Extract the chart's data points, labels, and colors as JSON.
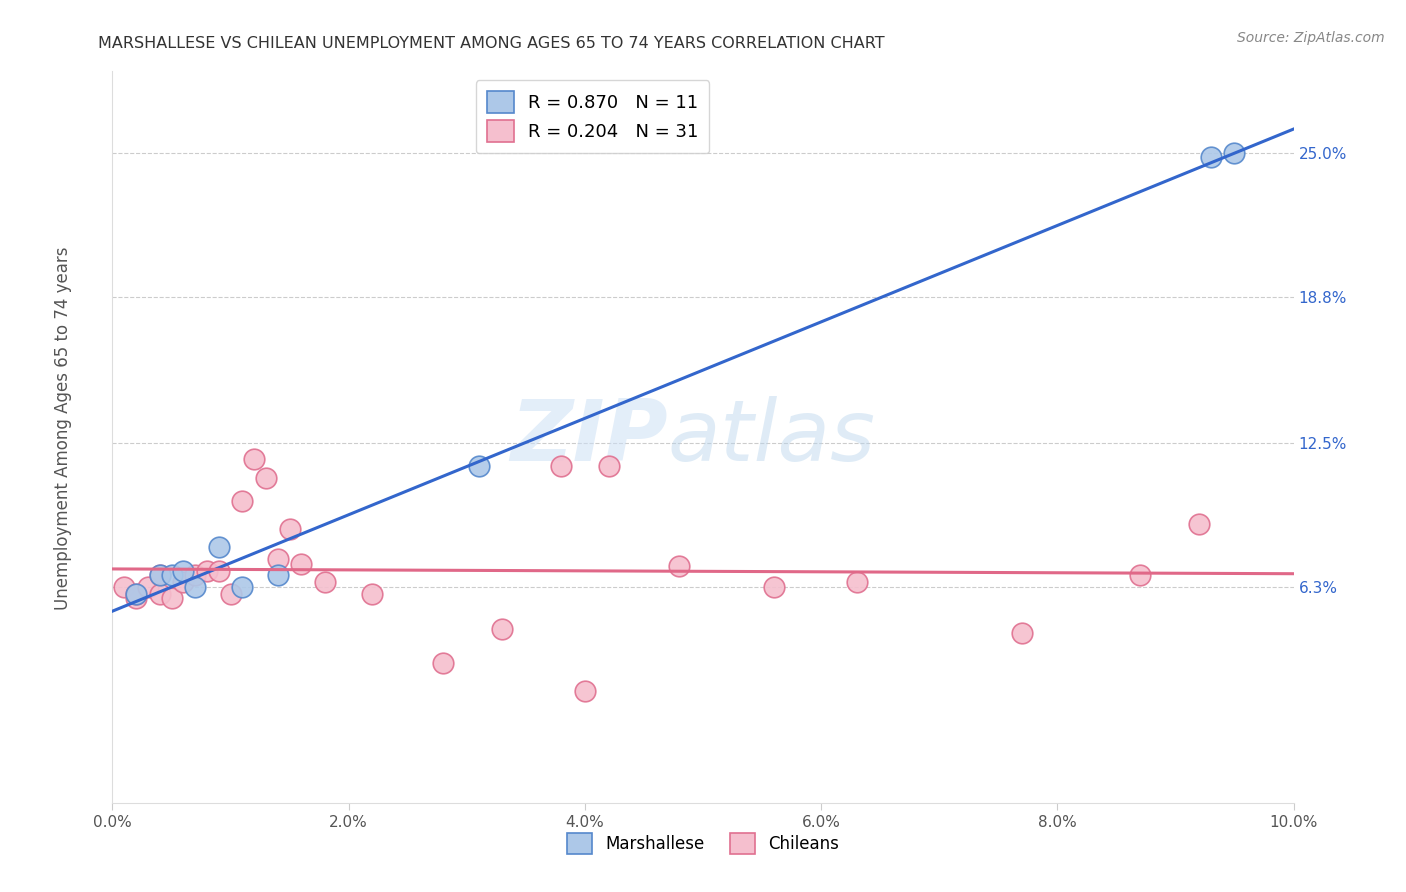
{
  "title": "MARSHALLESE VS CHILEAN UNEMPLOYMENT AMONG AGES 65 TO 74 YEARS CORRELATION CHART",
  "source": "Source: ZipAtlas.com",
  "ylabel": "Unemployment Among Ages 65 to 74 years",
  "xlim": [
    0.0,
    0.1
  ],
  "ylim": [
    -0.03,
    0.285
  ],
  "xtick_vals": [
    0.0,
    0.02,
    0.04,
    0.06,
    0.08,
    0.1
  ],
  "xtick_labels": [
    "0.0%",
    "2.0%",
    "4.0%",
    "6.0%",
    "8.0%",
    "10.0%"
  ],
  "ytick_positions": [
    0.063,
    0.125,
    0.188,
    0.25
  ],
  "ytick_labels": [
    "6.3%",
    "12.5%",
    "18.8%",
    "25.0%"
  ],
  "grid_color": "#cccccc",
  "background_color": "#ffffff",
  "marshallese_color": "#adc8e8",
  "marshallese_edge": "#5588cc",
  "chilean_color": "#f5bfce",
  "chilean_edge": "#e07090",
  "blue_line_color": "#3366cc",
  "pink_line_color": "#e06888",
  "R_marshallese": 0.87,
  "N_marshallese": 11,
  "R_chilean": 0.204,
  "N_chilean": 31,
  "marshallese_x": [
    0.002,
    0.004,
    0.005,
    0.006,
    0.007,
    0.009,
    0.011,
    0.014,
    0.031,
    0.093,
    0.095
  ],
  "marshallese_y": [
    0.06,
    0.068,
    0.068,
    0.07,
    0.063,
    0.08,
    0.063,
    0.068,
    0.115,
    0.248,
    0.25
  ],
  "chilean_x": [
    0.001,
    0.002,
    0.002,
    0.003,
    0.004,
    0.004,
    0.005,
    0.006,
    0.007,
    0.008,
    0.009,
    0.01,
    0.011,
    0.012,
    0.013,
    0.014,
    0.015,
    0.016,
    0.018,
    0.022,
    0.028,
    0.033,
    0.038,
    0.04,
    0.042,
    0.048,
    0.056,
    0.063,
    0.077,
    0.087,
    0.092
  ],
  "chilean_y": [
    0.063,
    0.058,
    0.06,
    0.063,
    0.068,
    0.06,
    0.058,
    0.065,
    0.068,
    0.07,
    0.07,
    0.06,
    0.1,
    0.118,
    0.11,
    0.075,
    0.088,
    0.073,
    0.065,
    0.06,
    0.03,
    0.045,
    0.115,
    0.018,
    0.115,
    0.072,
    0.063,
    0.065,
    0.043,
    0.068,
    0.09
  ],
  "watermark_zip": "ZIP",
  "watermark_atlas": "atlas",
  "dot_size": 220
}
